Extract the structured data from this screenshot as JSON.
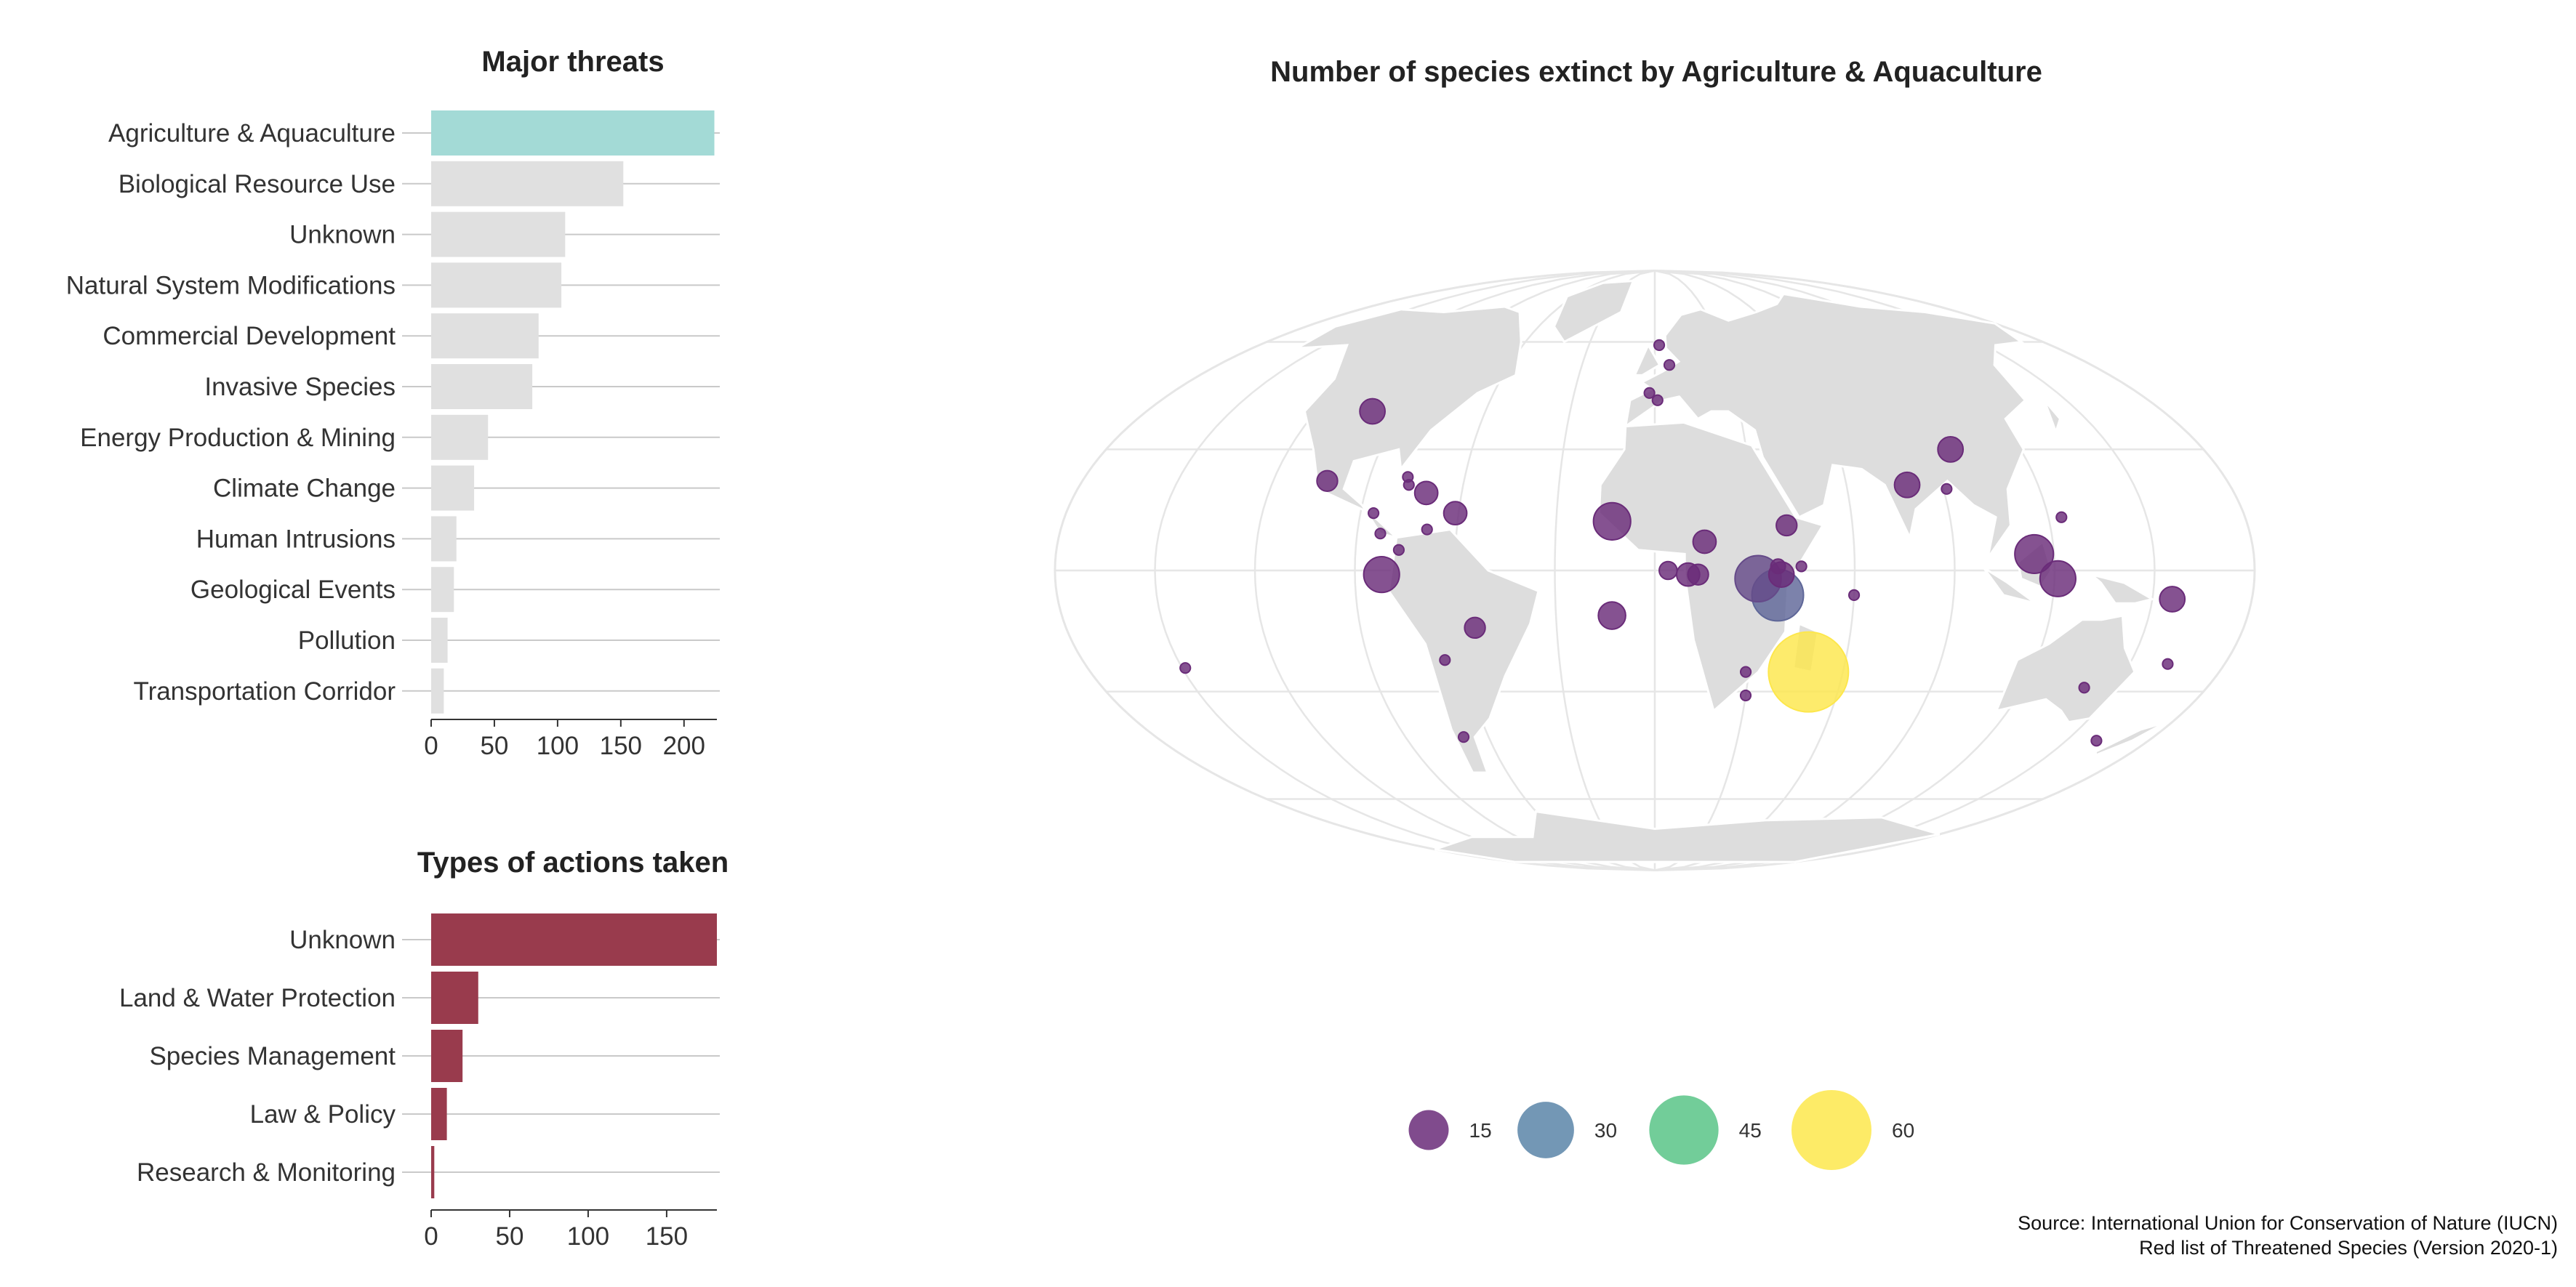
{
  "source": {
    "line1": "Source:  International Union for Conservation of Nature (IUCN)",
    "line2": "Red list of Threatened Species (Version 2020-1)"
  },
  "chart_data": [
    {
      "type": "bar",
      "orientation": "horizontal",
      "title": "Major threats",
      "categories": [
        "Agriculture & Aquaculture",
        "Biological Resource Use",
        "Unknown",
        "Natural System Modifications",
        "Commercial Development",
        "Invasive Species",
        "Energy Production & Mining",
        "Climate Change",
        "Human Intrusions",
        "Geological Events",
        "Pollution",
        "Transportation Corridor"
      ],
      "values": [
        224,
        152,
        106,
        103,
        85,
        80,
        45,
        34,
        20,
        18,
        13,
        10
      ],
      "highlight": "Agriculture & Aquaculture",
      "colors": {
        "highlight": "#a3dad6",
        "default": "#e0e0e0"
      },
      "xticks": [
        0,
        50,
        100,
        150,
        200
      ],
      "xlim": [
        0,
        226
      ],
      "grid": true
    },
    {
      "type": "bar",
      "orientation": "horizontal",
      "title": "Types of actions taken",
      "categories": [
        "Unknown",
        "Land & Water Protection",
        "Species Management",
        "Law & Policy",
        "Research & Monitoring"
      ],
      "values": [
        182,
        30,
        20,
        10,
        2
      ],
      "colors": {
        "default": "#993b4d"
      },
      "xticks": [
        0,
        50,
        100,
        150
      ],
      "xlim": [
        0,
        182
      ],
      "grid": true
    },
    {
      "type": "scatter",
      "subtype": "bubble-map",
      "projection": "mollweide",
      "title": "Number of species extinct by Agriculture & Aquaculture",
      "size_legend": [
        15,
        30,
        45,
        60
      ],
      "size_legend_colors": [
        "#6a2c79",
        "#5a85a8",
        "#59c487",
        "#fde74c"
      ],
      "points": [
        {
          "lon": -100,
          "lat": 40,
          "value": 6
        },
        {
          "lon": -103,
          "lat": 22,
          "value": 4
        },
        {
          "lon": -78,
          "lat": 23,
          "value": 1
        },
        {
          "lon": -77,
          "lat": 21,
          "value": 1
        },
        {
          "lon": -71,
          "lat": 19,
          "value": 5
        },
        {
          "lon": -86,
          "lat": 14,
          "value": 1
        },
        {
          "lon": -61,
          "lat": 14,
          "value": 5
        },
        {
          "lon": -83,
          "lat": 9,
          "value": 1
        },
        {
          "lon": -77,
          "lat": 5,
          "value": 1
        },
        {
          "lon": -69,
          "lat": 10,
          "value": 1
        },
        {
          "lon": -82,
          "lat": -1,
          "value": 12
        },
        {
          "lon": -55,
          "lat": -14,
          "value": 4
        },
        {
          "lon": -66,
          "lat": -22,
          "value": 1
        },
        {
          "lon": -69,
          "lat": -42,
          "value": 1
        },
        {
          "lon": -149,
          "lat": -24,
          "value": 1
        },
        {
          "lon": 2,
          "lat": 59,
          "value": 1
        },
        {
          "lon": 6,
          "lat": 53,
          "value": 1
        },
        {
          "lon": -2,
          "lat": 45,
          "value": 1
        },
        {
          "lon": 1,
          "lat": 43,
          "value": 1
        },
        {
          "lon": -13,
          "lat": 12,
          "value": 13
        },
        {
          "lon": 15,
          "lat": 7,
          "value": 5
        },
        {
          "lon": 4,
          "lat": 0,
          "value": 3
        },
        {
          "lon": 10,
          "lat": -1,
          "value": 5
        },
        {
          "lon": 13,
          "lat": -1,
          "value": 4
        },
        {
          "lon": 37,
          "lat": 1,
          "value": 2
        },
        {
          "lon": 38,
          "lat": -1,
          "value": 6
        },
        {
          "lon": 40,
          "lat": 11,
          "value": 4
        },
        {
          "lon": 44,
          "lat": 1,
          "value": 1
        },
        {
          "lon": 31,
          "lat": -2,
          "value": 20
        },
        {
          "lon": 37,
          "lat": -6,
          "value": 25
        },
        {
          "lon": -13,
          "lat": -11,
          "value": 7
        },
        {
          "lon": 29,
          "lat": -25,
          "value": 1
        },
        {
          "lon": 30,
          "lat": -31,
          "value": 1
        },
        {
          "lon": 49,
          "lat": -25,
          "value": 60
        },
        {
          "lon": 60,
          "lat": -6,
          "value": 1
        },
        {
          "lon": 79,
          "lat": 21,
          "value": 6
        },
        {
          "lon": 97,
          "lat": 30,
          "value": 6
        },
        {
          "lon": 91,
          "lat": 20,
          "value": 1
        },
        {
          "lon": 124,
          "lat": 13,
          "value": 1
        },
        {
          "lon": 114,
          "lat": 4,
          "value": 14
        },
        {
          "lon": 121,
          "lat": -2,
          "value": 12
        },
        {
          "lon": 156,
          "lat": -7,
          "value": 6
        },
        {
          "lon": 140,
          "lat": -29,
          "value": 1
        },
        {
          "lon": 162,
          "lat": -23,
          "value": 1
        },
        {
          "lon": 161,
          "lat": -43,
          "value": 1
        }
      ]
    }
  ]
}
